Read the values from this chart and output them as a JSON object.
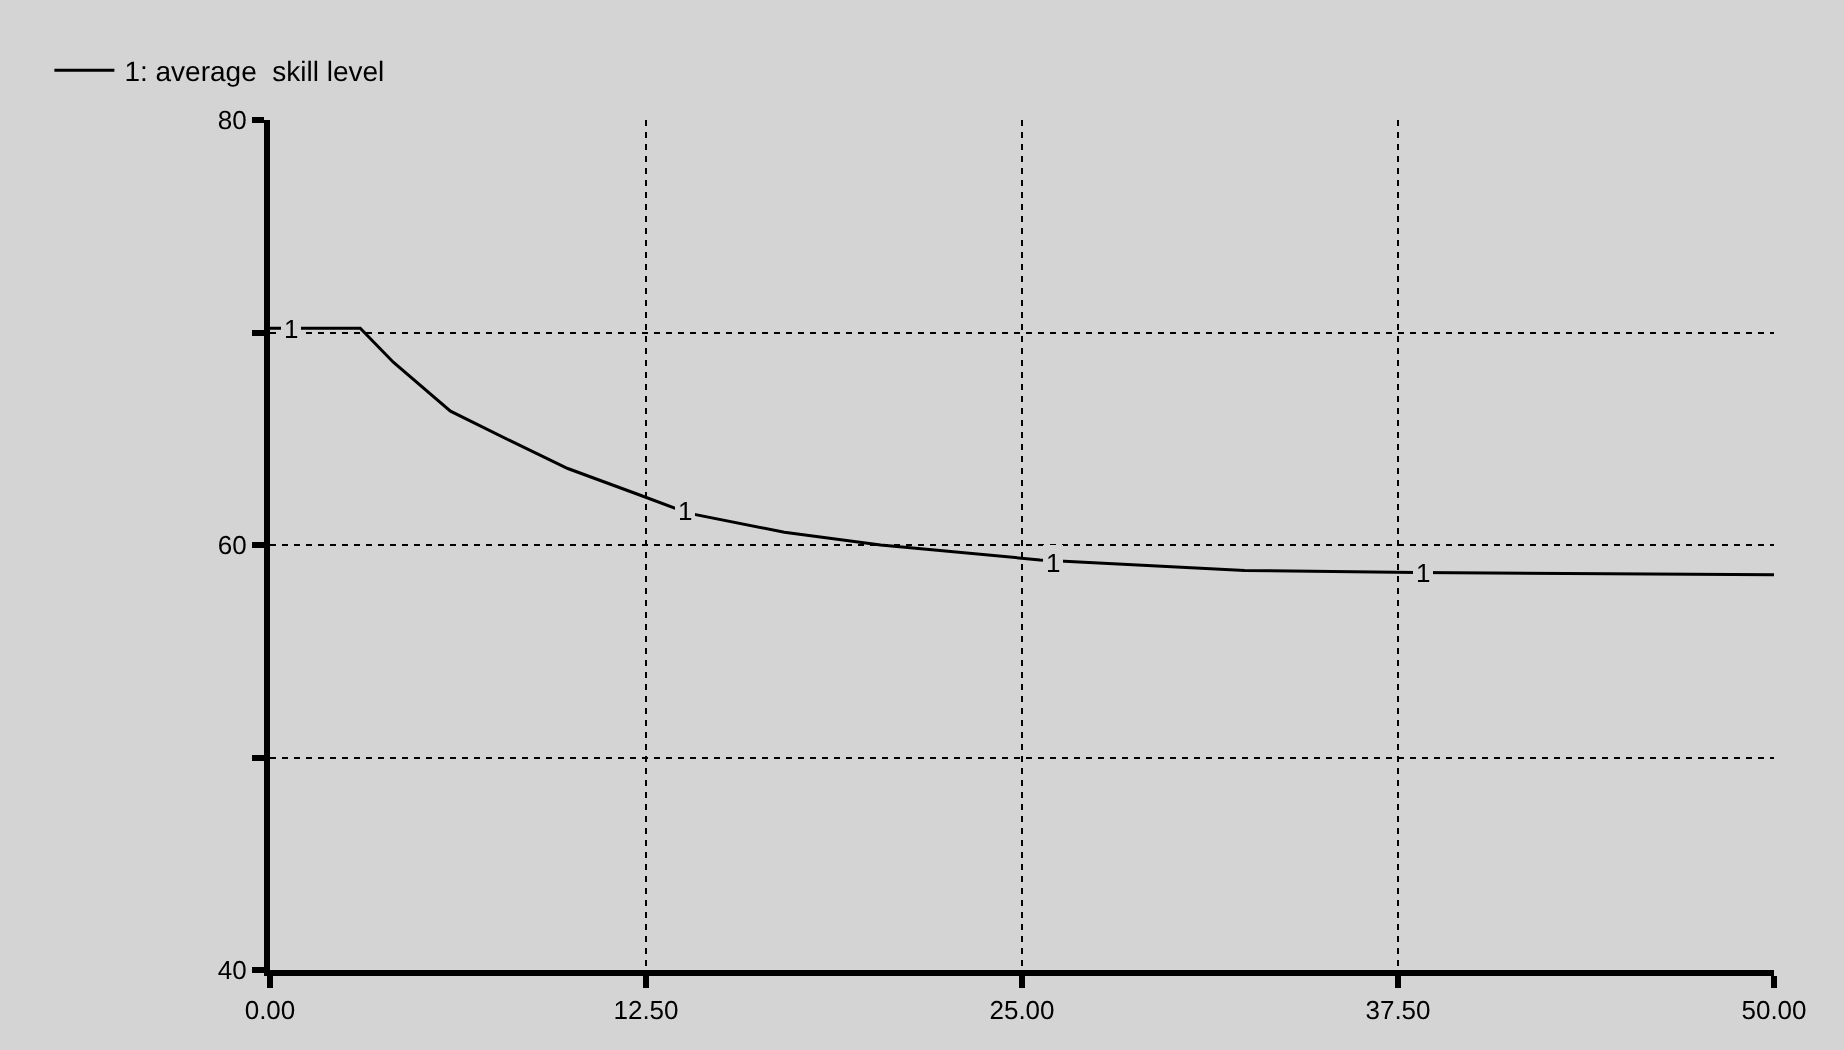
{
  "chart_data": {
    "type": "line",
    "x": [
      0,
      3.0,
      4.1,
      6.0,
      8.0,
      9.9,
      12.2,
      13.9,
      17.1,
      20.3,
      25.6,
      32.4,
      38.1,
      50
    ],
    "series": [
      {
        "name": "1: average  skill level",
        "color": "#000000",
        "values": [
          70.2,
          70.2,
          68.6,
          66.3,
          64.9,
          63.6,
          62.4,
          61.5,
          60.6,
          60.0,
          59.3,
          58.8,
          58.7,
          58.6
        ]
      }
    ],
    "annotations": [
      {
        "text": "1",
        "x": 0.7,
        "y": 70.2
      },
      {
        "text": "1",
        "x": 13.8,
        "y": 61.6
      },
      {
        "text": "1",
        "x": 26.0,
        "y": 59.2
      },
      {
        "text": "1",
        "x": 38.3,
        "y": 58.7
      }
    ],
    "xlim": [
      0,
      50
    ],
    "xticks": [
      {
        "value": 0,
        "label": "0.00"
      },
      {
        "value": 12.5,
        "label": "12.50"
      },
      {
        "value": 25,
        "label": "25.00"
      },
      {
        "value": 37.5,
        "label": "37.50"
      },
      {
        "value": 50,
        "label": "50.00"
      }
    ],
    "ylim": [
      40,
      80
    ],
    "yticks": [
      40,
      {
        "value": 50,
        "label": null
      },
      60,
      {
        "value": 70,
        "label": null
      },
      80
    ],
    "grid": true,
    "legend": "top left",
    "line_style": "solid",
    "marker": "none"
  }
}
